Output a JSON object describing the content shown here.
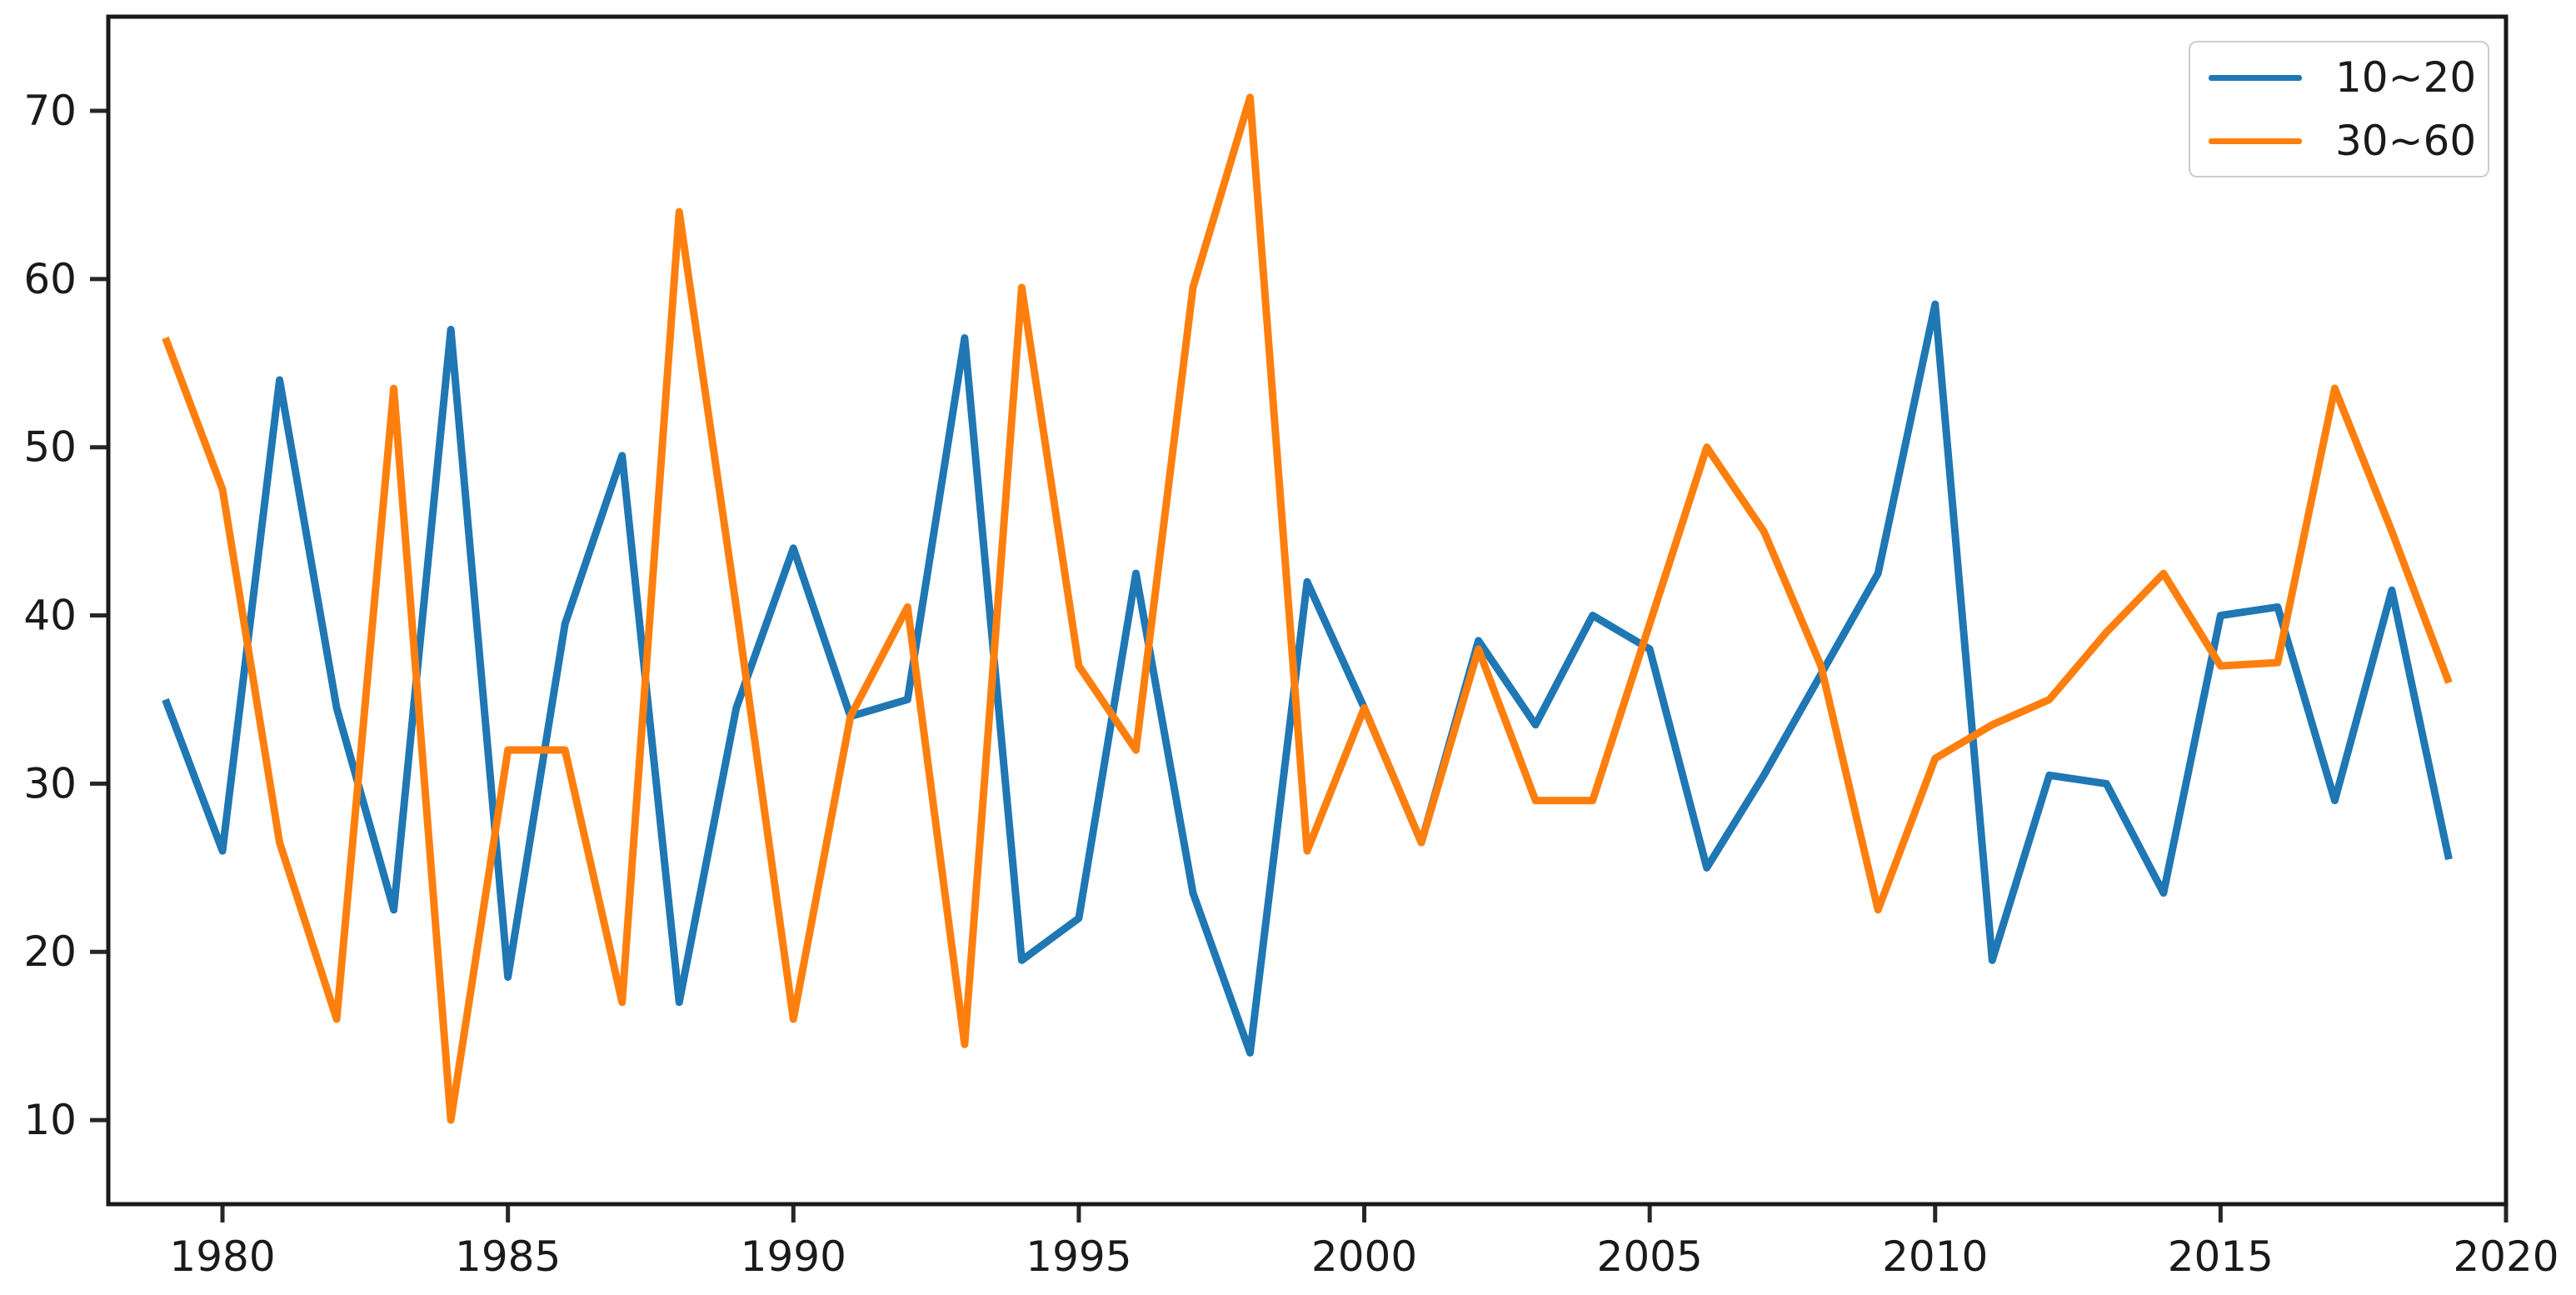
{
  "figure": {
    "background_color": "#ffffff",
    "axis_color": "#1a1a1a",
    "tick_color": "#262626"
  },
  "chart_data": {
    "type": "line",
    "title": "",
    "xlabel": "",
    "ylabel": "",
    "grid": false,
    "legend_position": "upper right",
    "xlim": [
      1978,
      2020
    ],
    "ylim": [
      5,
      75.6
    ],
    "xticks": [
      1980,
      1985,
      1990,
      1995,
      2000,
      2005,
      2010,
      2015,
      2020
    ],
    "yticks": [
      10,
      20,
      30,
      40,
      50,
      60,
      70
    ],
    "x": [
      1979,
      1980,
      1981,
      1982,
      1983,
      1984,
      1985,
      1986,
      1987,
      1988,
      1989,
      1990,
      1991,
      1992,
      1993,
      1994,
      1995,
      1996,
      1997,
      1998,
      1999,
      2000,
      2001,
      2002,
      2003,
      2004,
      2005,
      2006,
      2007,
      2008,
      2009,
      2010,
      2011,
      2012,
      2013,
      2014,
      2015,
      2016,
      2017,
      2018,
      2019
    ],
    "series": [
      {
        "name": "10~20",
        "color": "#1f77b4",
        "values": [
          35,
          26,
          54,
          34.5,
          22.5,
          57,
          18.5,
          39.5,
          49.5,
          17,
          34.5,
          44,
          34,
          35,
          56.5,
          19.5,
          22,
          42.5,
          23.5,
          14,
          42,
          34.5,
          26.5,
          38.5,
          33.5,
          40,
          38,
          25,
          30.5,
          36.5,
          42.5,
          58.5,
          19.5,
          30.5,
          30,
          23.5,
          40,
          40.5,
          29,
          41.5,
          25.5
        ]
      },
      {
        "name": "30~60",
        "color": "#ff7f0e",
        "values": [
          56.5,
          47.5,
          26.5,
          16,
          53.5,
          10,
          32,
          32,
          17,
          64,
          40.5,
          16,
          34,
          40.5,
          14.5,
          59.5,
          37,
          32,
          59.5,
          70.8,
          26,
          34.5,
          26.5,
          38,
          29,
          29,
          39.5,
          50,
          45,
          37,
          22.5,
          31.5,
          33.5,
          35,
          39,
          42.5,
          37,
          37.2,
          53.5,
          45,
          36
        ]
      }
    ]
  }
}
